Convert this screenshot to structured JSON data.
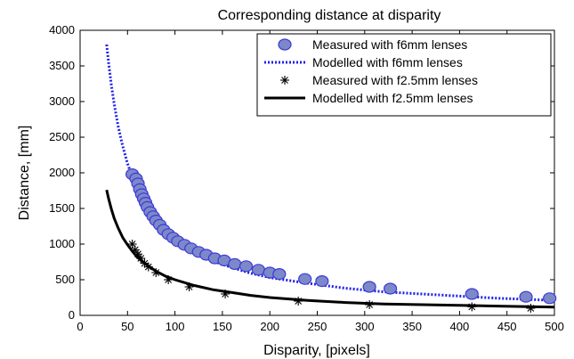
{
  "chart_data": {
    "type": "line",
    "title": "Corresponding distance at disparity",
    "xlabel": "Disparity, [pixels]",
    "ylabel": "Distance, [mm]",
    "xlim": [
      0,
      500
    ],
    "ylim": [
      0,
      4000
    ],
    "xticks": [
      0,
      50,
      100,
      150,
      200,
      250,
      300,
      350,
      400,
      450,
      500
    ],
    "yticks": [
      0,
      500,
      1000,
      1500,
      2000,
      2500,
      3000,
      3500,
      4000
    ],
    "legend_position": "top-right",
    "grid": false,
    "series": [
      {
        "name": "Measured with f6mm lenses",
        "kind": "marker-circle",
        "color": "#3a3ad8",
        "x": [
          55,
          59,
          61,
          63,
          65,
          67,
          69,
          71,
          74,
          77,
          80,
          84,
          88,
          93,
          98,
          103,
          110,
          117,
          125,
          133,
          142,
          152,
          163,
          175,
          188,
          200,
          210,
          237,
          255,
          305,
          327,
          413,
          470,
          495
        ],
        "y": [
          1980,
          1920,
          1850,
          1770,
          1700,
          1640,
          1580,
          1520,
          1450,
          1390,
          1330,
          1270,
          1200,
          1140,
          1090,
          1040,
          990,
          940,
          890,
          850,
          800,
          770,
          720,
          690,
          640,
          600,
          580,
          510,
          480,
          400,
          375,
          300,
          260,
          240
        ]
      },
      {
        "name": "Modelled with f6mm lenses",
        "kind": "dotted-line",
        "color": "#2020ee",
        "x": [
          28,
          30,
          33,
          36,
          40,
          45,
          50,
          55,
          60,
          70,
          80,
          90,
          100,
          120,
          140,
          160,
          180,
          200,
          240,
          280,
          320,
          360,
          400,
          440,
          480,
          500
        ],
        "y": [
          3800,
          3550,
          3230,
          2960,
          2660,
          2370,
          2130,
          1940,
          1780,
          1520,
          1330,
          1180,
          1070,
          890,
          760,
          670,
          590,
          530,
          450,
          380,
          330,
          300,
          270,
          240,
          220,
          210
        ]
      },
      {
        "name": "Measured with f2.5mm lenses",
        "kind": "marker-star",
        "color": "#000000",
        "x": [
          55,
          58,
          61,
          64,
          68,
          72,
          80,
          93,
          115,
          153,
          230,
          305,
          413,
          475
        ],
        "y": [
          1000,
          920,
          860,
          800,
          730,
          680,
          600,
          500,
          400,
          300,
          200,
          150,
          120,
          100
        ]
      },
      {
        "name": "Modelled with f2.5mm lenses",
        "kind": "solid-line",
        "color": "#000000",
        "x": [
          28,
          30,
          33,
          36,
          40,
          45,
          50,
          55,
          60,
          70,
          80,
          90,
          100,
          120,
          140,
          160,
          180,
          200,
          240,
          280,
          320,
          360,
          400,
          440,
          480,
          500
        ],
        "y": [
          1760,
          1640,
          1490,
          1360,
          1230,
          1090,
          990,
          900,
          820,
          710,
          620,
          550,
          500,
          420,
          360,
          320,
          280,
          250,
          210,
          180,
          160,
          150,
          140,
          130,
          120,
          115
        ]
      }
    ]
  }
}
